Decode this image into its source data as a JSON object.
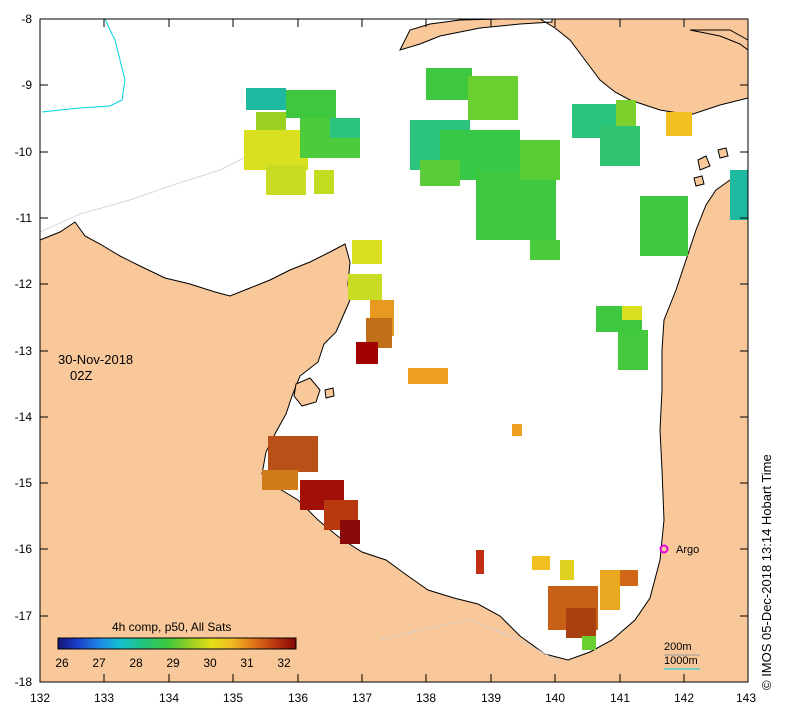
{
  "date": "30-Nov-2018",
  "time": "02Z",
  "colorbar": {
    "title": "4h comp, p50, All Sats",
    "ticks": [
      "26",
      "27",
      "28",
      "29",
      "30",
      "31",
      "32"
    ]
  },
  "legend": {
    "contour_200": "200m",
    "contour_1000": "1000m"
  },
  "argo_label": "Argo",
  "credit": "© IMOS 05-Dec-2018 13:14 Hobart Time",
  "x_ticks": [
    "132",
    "133",
    "134",
    "135",
    "136",
    "137",
    "138",
    "139",
    "140",
    "141",
    "142",
    "143"
  ],
  "y_ticks": [
    "-8",
    "-9",
    "-10",
    "-11",
    "-12",
    "-13",
    "-14",
    "-15",
    "-16",
    "-17",
    "-18"
  ],
  "colors": {
    "land": "#f9c89a",
    "coast": "#000000",
    "contour_200": "#7a7a7a",
    "contour_1000": "#00d0e0"
  }
}
